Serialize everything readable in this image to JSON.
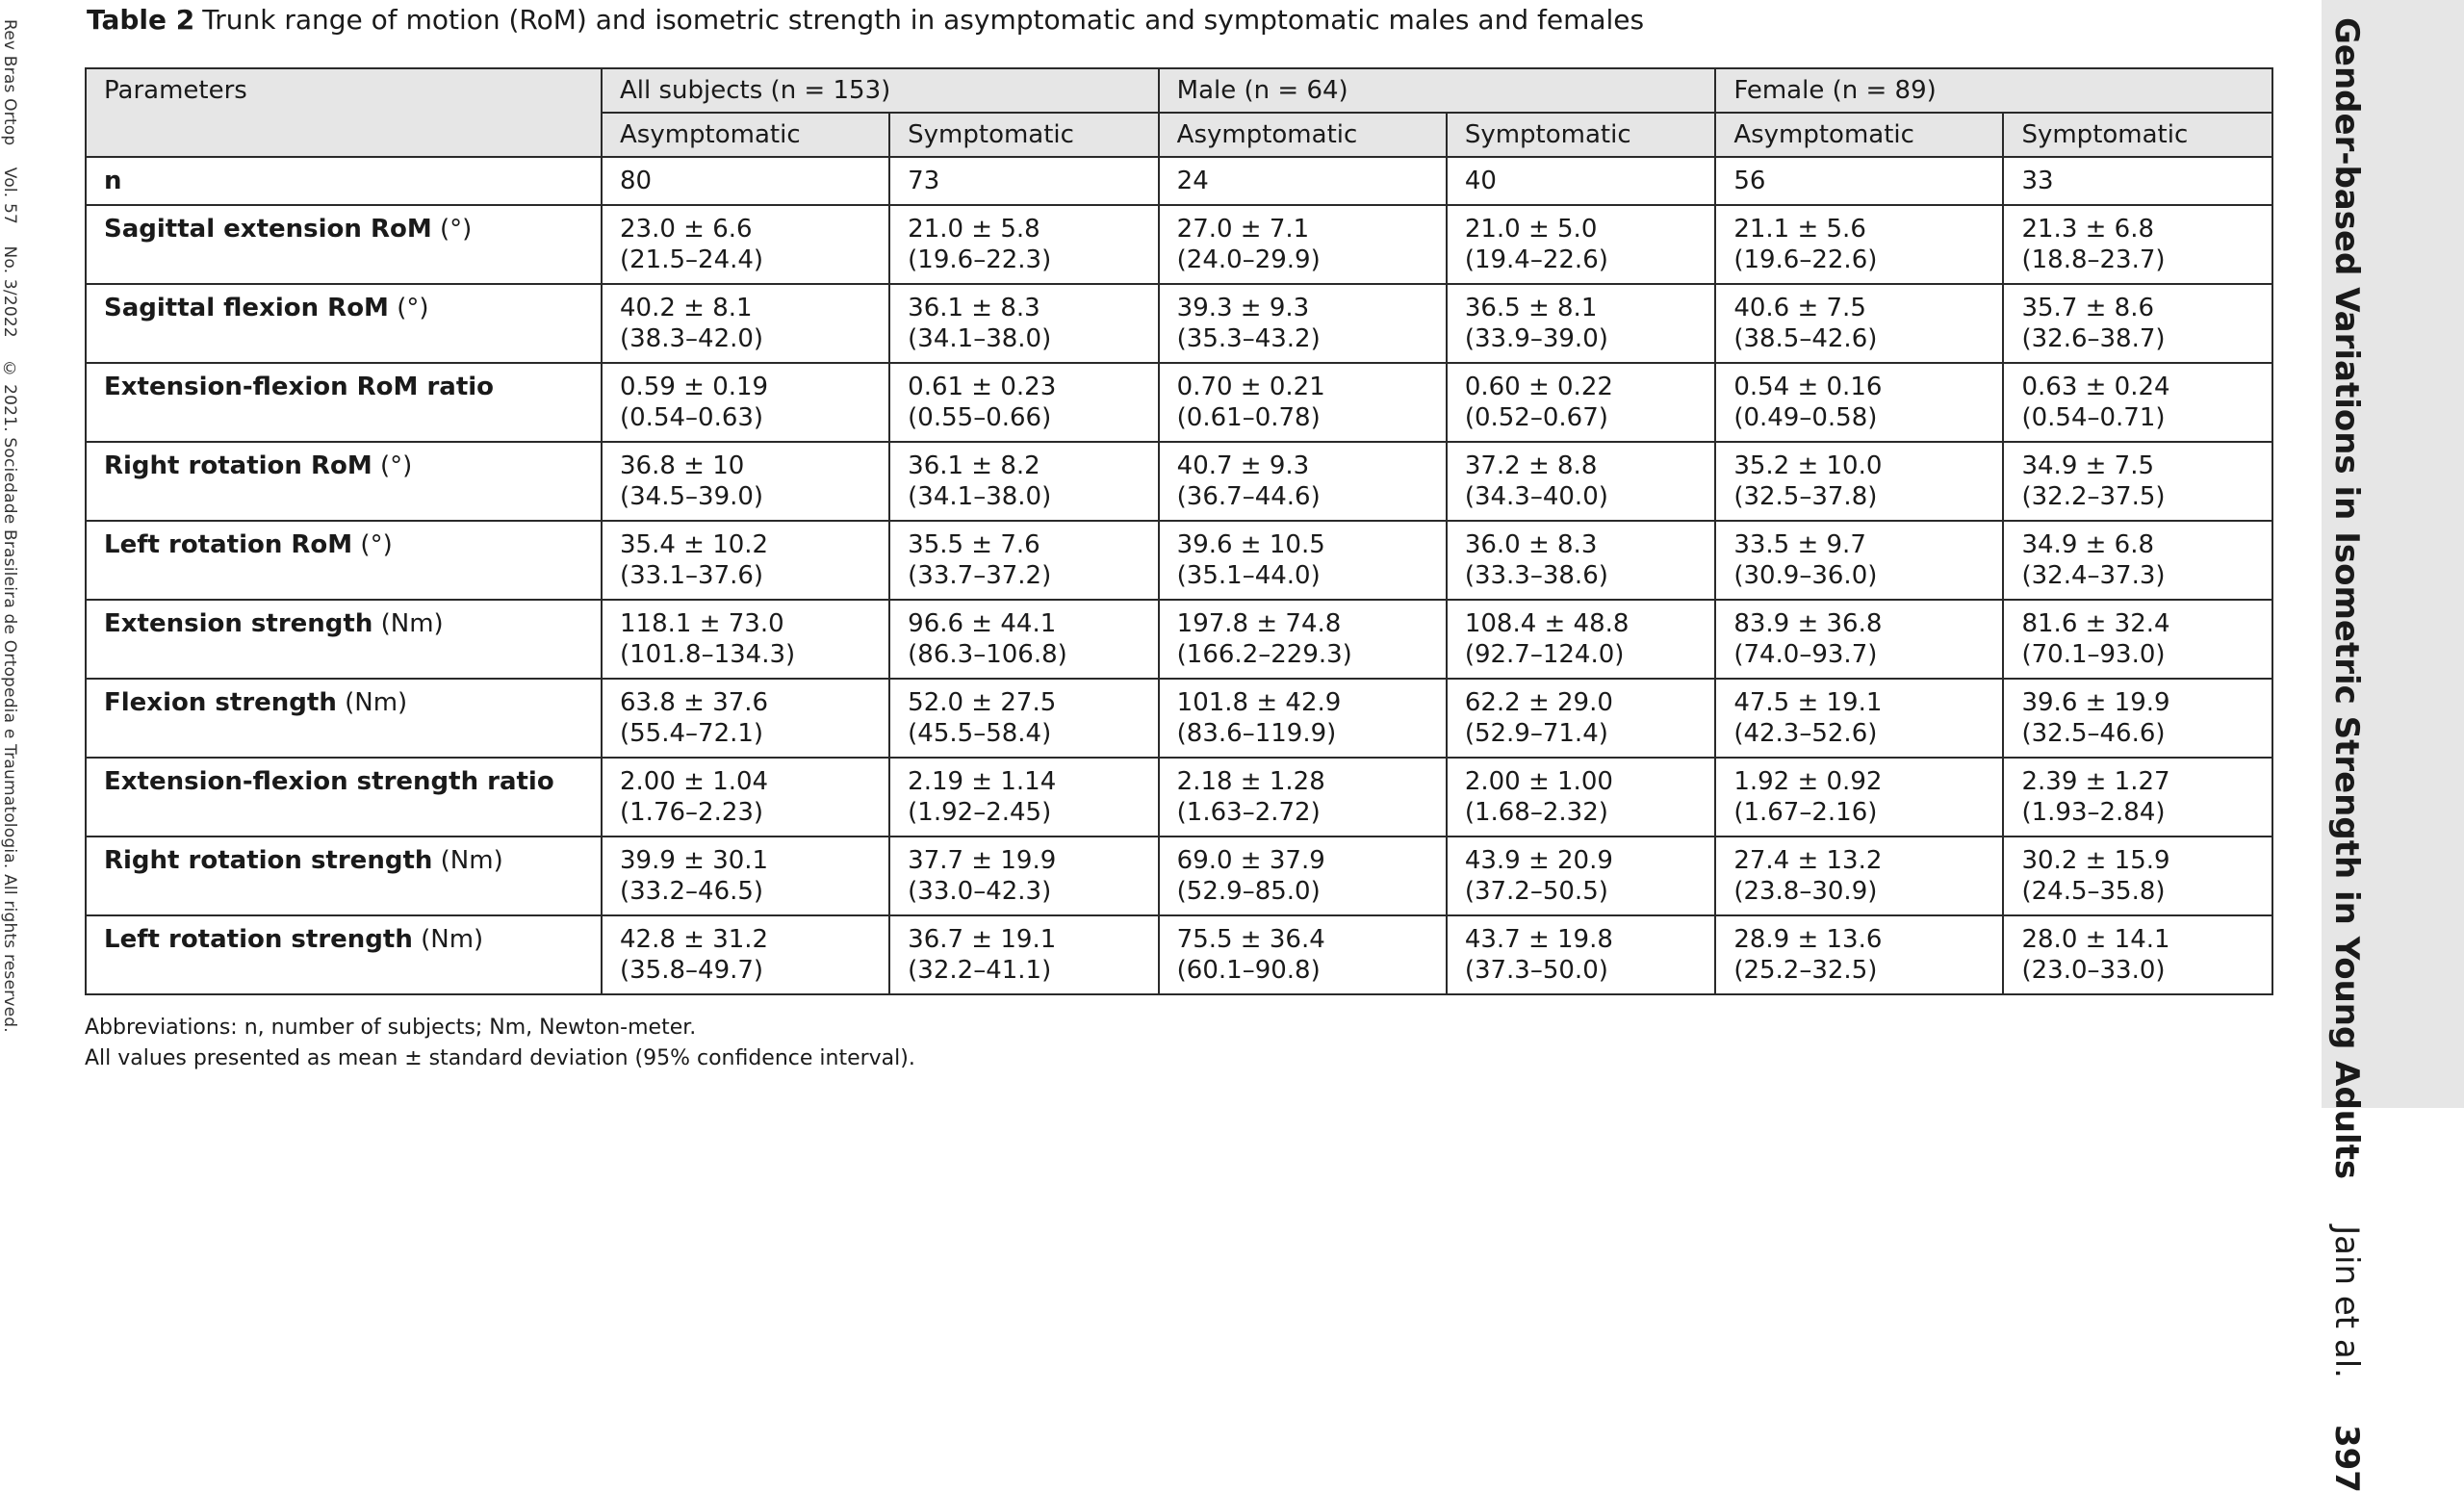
{
  "margin_left": {
    "journal": "Rev Bras Ortop",
    "volume": "Vol. 57",
    "issue": "No. 3/2022",
    "copyright": "© 2021. Sociedade Brasileira de Ortopedia e Traumatologia. All rights reserved."
  },
  "running_head": {
    "title": "Gender-based Variations in Isometric Strength in Young Adults",
    "authors": "Jain et al.",
    "page": "397"
  },
  "caption": {
    "label": "Table 2",
    "text": "Trunk range of motion (RoM) and isometric strength in asymptomatic and symptomatic males and females"
  },
  "table": {
    "header_params": "Parameters",
    "groups": [
      "All subjects (n = 153)",
      "Male (n = 64)",
      "Female (n = 89)"
    ],
    "subheaders": [
      "Asymptomatic",
      "Symptomatic",
      "Asymptomatic",
      "Symptomatic",
      "Asymptomatic",
      "Symptomatic"
    ],
    "rows": [
      {
        "param": "n",
        "unit": "",
        "cells": [
          [
            "80",
            ""
          ],
          [
            "73",
            ""
          ],
          [
            "24",
            ""
          ],
          [
            "40",
            ""
          ],
          [
            "56",
            ""
          ],
          [
            "33",
            ""
          ]
        ]
      },
      {
        "param": "Sagittal extension RoM",
        "unit": " (°)",
        "cells": [
          [
            "23.0 ± 6.6",
            "(21.5–24.4)"
          ],
          [
            "21.0 ± 5.8",
            "(19.6–22.3)"
          ],
          [
            "27.0 ± 7.1",
            "(24.0–29.9)"
          ],
          [
            "21.0 ± 5.0",
            "(19.4–22.6)"
          ],
          [
            "21.1 ± 5.6",
            "(19.6–22.6)"
          ],
          [
            "21.3 ± 6.8",
            "(18.8–23.7)"
          ]
        ]
      },
      {
        "param": "Sagittal flexion RoM",
        "unit": " (°)",
        "cells": [
          [
            "40.2 ± 8.1",
            "(38.3–42.0)"
          ],
          [
            "36.1 ± 8.3",
            "(34.1–38.0)"
          ],
          [
            "39.3 ± 9.3",
            "(35.3–43.2)"
          ],
          [
            "36.5 ± 8.1",
            "(33.9–39.0)"
          ],
          [
            "40.6 ± 7.5",
            "(38.5–42.6)"
          ],
          [
            "35.7 ± 8.6",
            "(32.6–38.7)"
          ]
        ]
      },
      {
        "param": "Extension-flexion RoM ratio",
        "unit": "",
        "cells": [
          [
            "0.59 ± 0.19",
            "(0.54–0.63)"
          ],
          [
            "0.61 ± 0.23",
            "(0.55–0.66)"
          ],
          [
            "0.70 ± 0.21",
            "(0.61–0.78)"
          ],
          [
            "0.60 ± 0.22",
            "(0.52–0.67)"
          ],
          [
            "0.54 ± 0.16",
            "(0.49–0.58)"
          ],
          [
            "0.63 ± 0.24",
            "(0.54–0.71)"
          ]
        ]
      },
      {
        "param": "Right rotation RoM",
        "unit": " (°)",
        "cells": [
          [
            "36.8 ± 10",
            "(34.5–39.0)"
          ],
          [
            "36.1 ± 8.2",
            "(34.1–38.0)"
          ],
          [
            "40.7 ± 9.3",
            "(36.7–44.6)"
          ],
          [
            "37.2 ± 8.8",
            "(34.3–40.0)"
          ],
          [
            "35.2 ± 10.0",
            "(32.5–37.8)"
          ],
          [
            "34.9 ± 7.5",
            "(32.2–37.5)"
          ]
        ]
      },
      {
        "param": "Left rotation RoM",
        "unit": " (°)",
        "cells": [
          [
            "35.4 ± 10.2",
            "(33.1–37.6)"
          ],
          [
            "35.5 ± 7.6",
            "(33.7–37.2)"
          ],
          [
            "39.6 ± 10.5",
            "(35.1–44.0)"
          ],
          [
            "36.0 ± 8.3",
            "(33.3–38.6)"
          ],
          [
            "33.5 ± 9.7",
            "(30.9–36.0)"
          ],
          [
            "34.9 ± 6.8",
            "(32.4–37.3)"
          ]
        ]
      },
      {
        "param": "Extension strength",
        "unit": " (Nm)",
        "cells": [
          [
            "118.1 ± 73.0",
            "(101.8–134.3)"
          ],
          [
            "96.6 ± 44.1",
            "(86.3–106.8)"
          ],
          [
            "197.8 ± 74.8",
            "(166.2–229.3)"
          ],
          [
            "108.4 ± 48.8",
            "(92.7–124.0)"
          ],
          [
            "83.9 ± 36.8",
            "(74.0–93.7)"
          ],
          [
            "81.6 ± 32.4",
            "(70.1–93.0)"
          ]
        ]
      },
      {
        "param": "Flexion strength",
        "unit": " (Nm)",
        "cells": [
          [
            "63.8 ± 37.6",
            "(55.4–72.1)"
          ],
          [
            "52.0 ± 27.5",
            "(45.5–58.4)"
          ],
          [
            "101.8 ± 42.9",
            "(83.6–119.9)"
          ],
          [
            "62.2 ± 29.0",
            "(52.9–71.4)"
          ],
          [
            "47.5 ± 19.1",
            "(42.3–52.6)"
          ],
          [
            "39.6 ± 19.9",
            "(32.5–46.6)"
          ]
        ]
      },
      {
        "param": "Extension-flexion strength ratio",
        "unit": "",
        "cells": [
          [
            "2.00 ± 1.04",
            "(1.76–2.23)"
          ],
          [
            "2.19 ± 1.14",
            "(1.92–2.45)"
          ],
          [
            "2.18 ± 1.28",
            "(1.63–2.72)"
          ],
          [
            "2.00 ± 1.00",
            "(1.68–2.32)"
          ],
          [
            "1.92 ± 0.92",
            "(1.67–2.16)"
          ],
          [
            "2.39 ± 1.27",
            "(1.93–2.84)"
          ]
        ]
      },
      {
        "param": "Right rotation strength",
        "unit": " (Nm)",
        "cells": [
          [
            "39.9 ± 30.1",
            "(33.2–46.5)"
          ],
          [
            "37.7 ± 19.9",
            "(33.0–42.3)"
          ],
          [
            "69.0 ± 37.9",
            "(52.9–85.0)"
          ],
          [
            "43.9 ± 20.9",
            "(37.2–50.5)"
          ],
          [
            "27.4 ± 13.2",
            "(23.8–30.9)"
          ],
          [
            "30.2 ± 15.9",
            "(24.5–35.8)"
          ]
        ]
      },
      {
        "param": "Left rotation strength",
        "unit": " (Nm)",
        "cells": [
          [
            "42.8 ± 31.2",
            "(35.8–49.7)"
          ],
          [
            "36.7 ± 19.1",
            "(32.2–41.1)"
          ],
          [
            "75.5 ± 36.4",
            "(60.1–90.8)"
          ],
          [
            "43.7 ± 19.8",
            "(37.3–50.0)"
          ],
          [
            "28.9 ± 13.6",
            "(25.2–32.5)"
          ],
          [
            "28.0 ± 14.1",
            "(23.0–33.0)"
          ]
        ]
      }
    ]
  },
  "footnotes": [
    "Abbreviations: n, number of subjects; Nm, Newton-meter.",
    "All values presented as mean ± standard deviation (95% confidence interval)."
  ]
}
